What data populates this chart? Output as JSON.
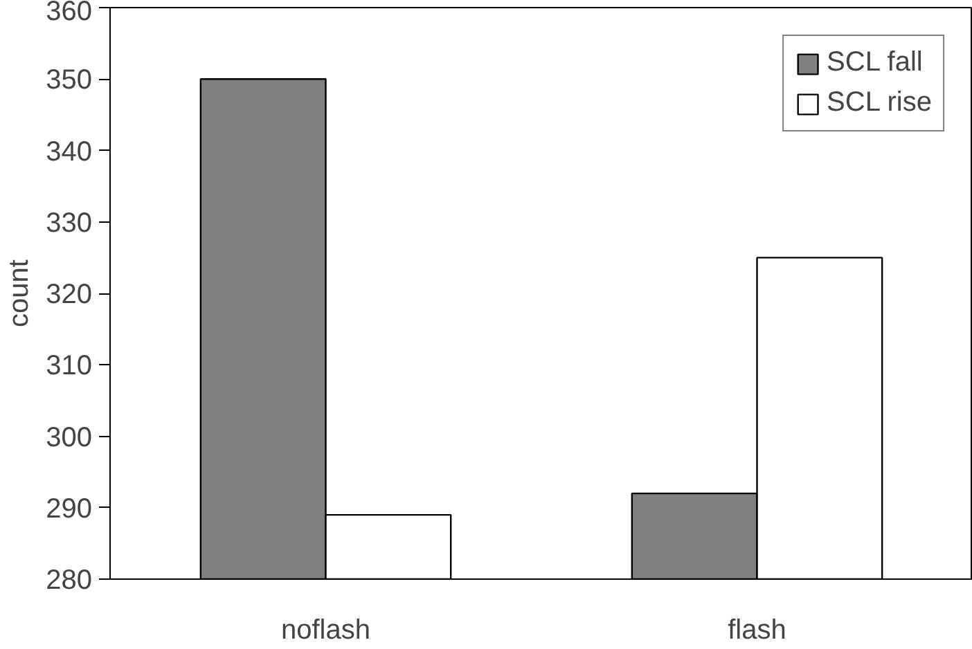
{
  "chart_data": {
    "type": "bar",
    "ylabel": "count",
    "categories": [
      "noflash",
      "flash"
    ],
    "series": [
      {
        "name": "SCL fall",
        "color": "#808080",
        "values": [
          350,
          292
        ]
      },
      {
        "name": "SCL rise",
        "color": "#ffffff",
        "values": [
          289,
          325
        ]
      }
    ],
    "ylim": [
      280,
      360
    ],
    "yticks": [
      280,
      290,
      300,
      310,
      320,
      330,
      340,
      350,
      360
    ],
    "grid": false,
    "legend": "top right"
  }
}
